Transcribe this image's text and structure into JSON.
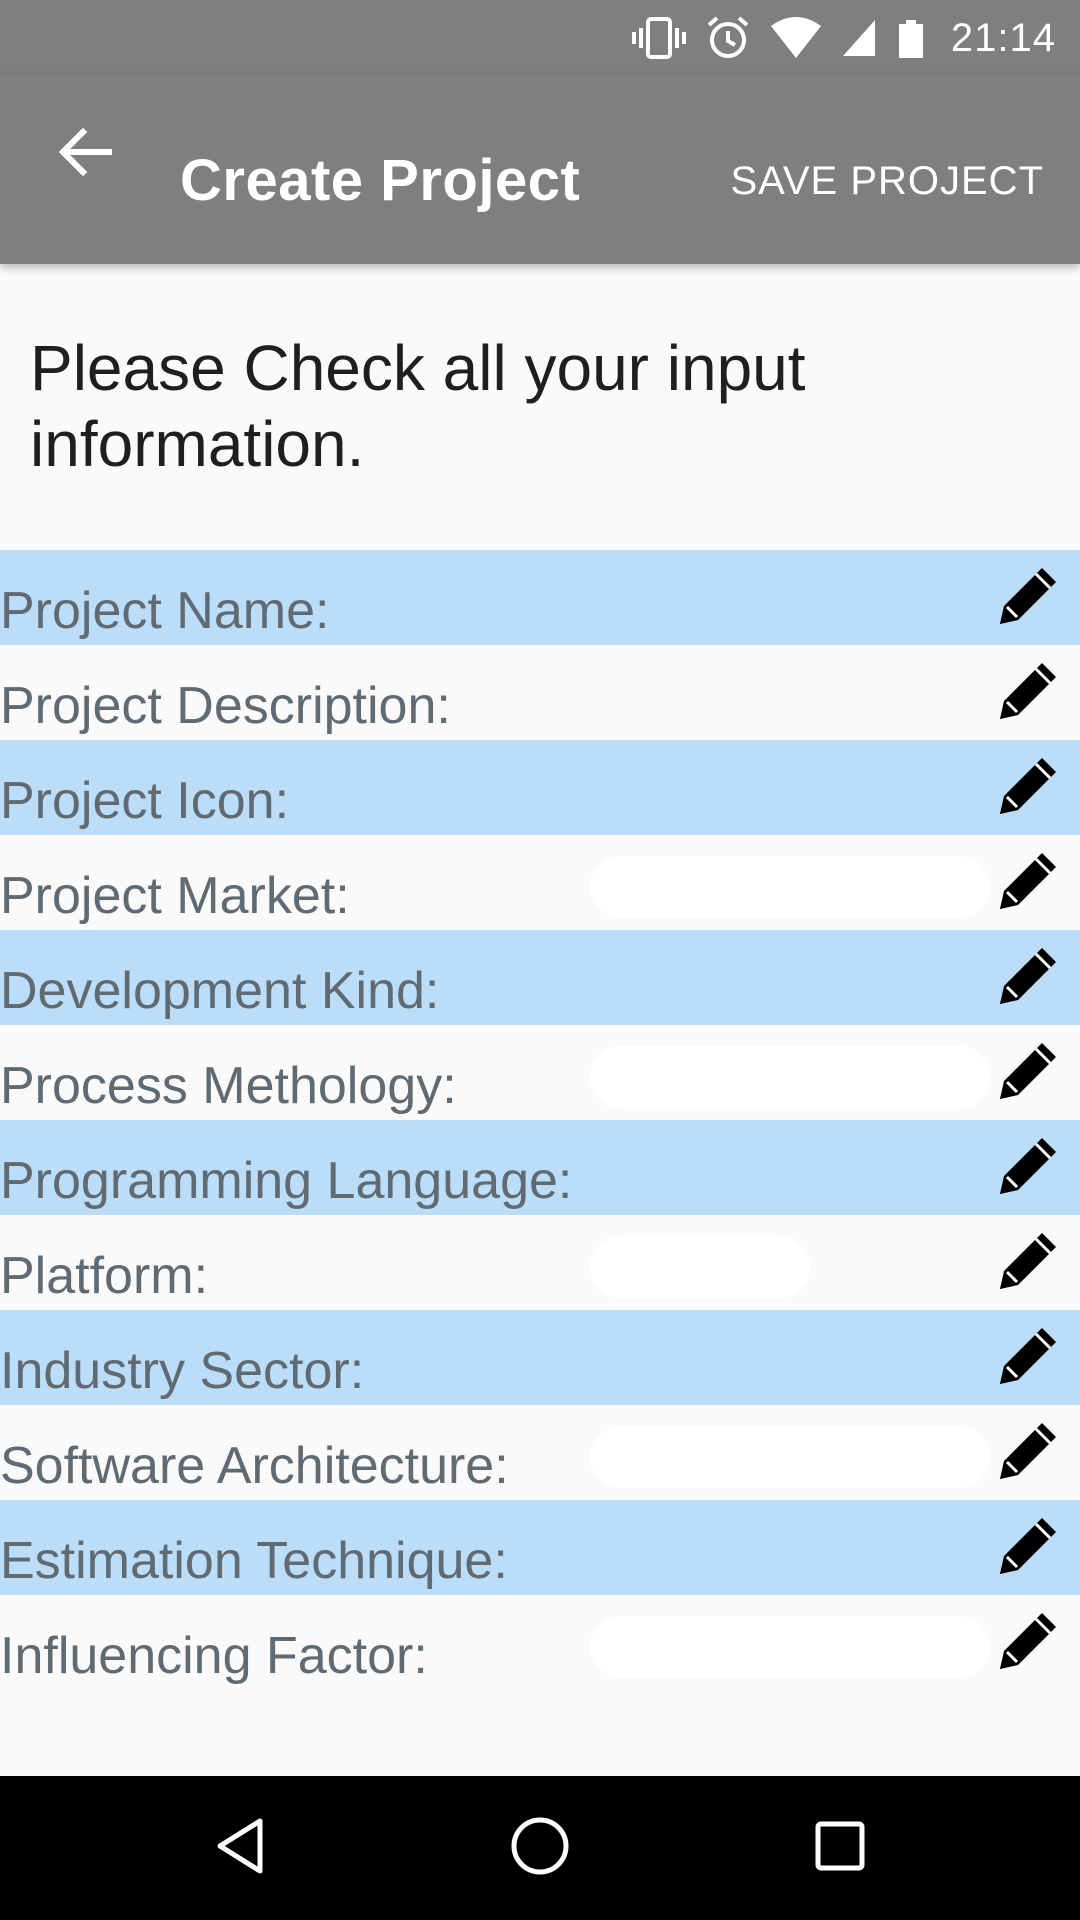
{
  "status_bar": {
    "time": "21:14",
    "icons": [
      "vibrate-icon",
      "alarm-icon",
      "wifi-icon",
      "cell-signal-icon",
      "battery-icon"
    ]
  },
  "app_bar": {
    "back_icon": "arrow-left-icon",
    "title": "Create Project",
    "action_label": "SAVE PROJECT"
  },
  "instruction": "Please Check all your input information.",
  "fields": [
    {
      "label": "Project Name:",
      "value": ""
    },
    {
      "label": "Project Description:",
      "value": ""
    },
    {
      "label": "Project Icon:",
      "value": ""
    },
    {
      "label": "Project Market:",
      "value": ""
    },
    {
      "label": "Development Kind:",
      "value": ""
    },
    {
      "label": "Process Methology:",
      "value": ""
    },
    {
      "label": "Programming Language:",
      "value": ""
    },
    {
      "label": "Platform:",
      "value": ""
    },
    {
      "label": "Industry Sector:",
      "value": ""
    },
    {
      "label": "Software Architecture:",
      "value": ""
    },
    {
      "label": "Estimation Technique:",
      "value": ""
    },
    {
      "label": "Influencing Factor:",
      "value": ""
    }
  ],
  "edit_icon": "pencil-icon",
  "nav_bar": {
    "icons": [
      "back-triangle-icon",
      "home-circle-icon",
      "recents-square-icon"
    ]
  },
  "colors": {
    "app_bar": "#7f7f7f",
    "row_highlight": "#bbddf7",
    "background": "#fafafa",
    "label_text": "#606a73"
  }
}
